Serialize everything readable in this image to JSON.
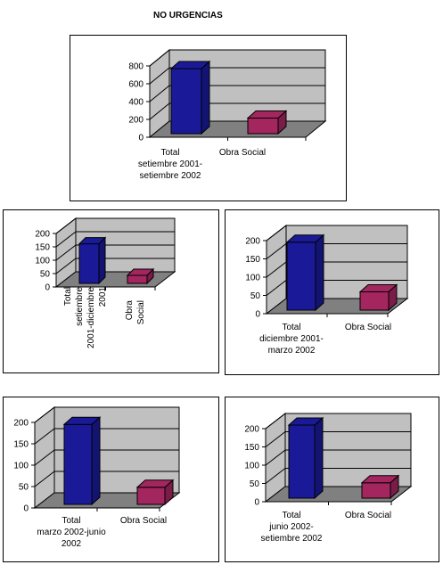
{
  "page": {
    "title": "NO URGENCIAS"
  },
  "colors": {
    "blue": "#1a1a98",
    "maroon": "#a3265f",
    "wall": "#c0c0c0",
    "floor": "#808080"
  },
  "chart_data": [
    {
      "id": "c1",
      "type": "bar",
      "categories": [
        "Total\nsetiembre 2001-\nsetiembre 2002",
        "Obra Social"
      ],
      "values": [
        730,
        175
      ],
      "ylim": [
        0,
        800
      ],
      "yticks": [
        "0",
        "200",
        "400",
        "600",
        "800"
      ],
      "grid": true
    },
    {
      "id": "c2",
      "type": "bar",
      "categories": [
        "Total\nsetiembre\n2001-diciembre\n2001",
        "Obra Social"
      ],
      "values": [
        148,
        30
      ],
      "ylim": [
        0,
        200
      ],
      "yticks": [
        "0",
        "50",
        "100",
        "150",
        "200"
      ],
      "grid": true,
      "rotated_labels": true
    },
    {
      "id": "c3",
      "type": "bar",
      "categories": [
        "Total\ndiciembre 2001-\nmarzo 2002",
        "Obra Social"
      ],
      "values": [
        186,
        50
      ],
      "ylim": [
        0,
        200
      ],
      "yticks": [
        "0",
        "50",
        "100",
        "150",
        "200"
      ],
      "grid": true
    },
    {
      "id": "c4",
      "type": "bar",
      "categories": [
        "Total\nmarzo 2002-junio\n2002",
        "Obra Social"
      ],
      "values": [
        187,
        40
      ],
      "ylim": [
        0,
        200
      ],
      "yticks": [
        "0",
        "50",
        "100",
        "150",
        "200"
      ],
      "grid": true
    },
    {
      "id": "c5",
      "type": "bar",
      "categories": [
        "Total\njunio 2002-\nsetiembre 2002",
        "Obra Social"
      ],
      "values": [
        200,
        42
      ],
      "ylim": [
        0,
        200
      ],
      "yticks": [
        "0",
        "50",
        "100",
        "150",
        "200"
      ],
      "grid": true
    }
  ]
}
